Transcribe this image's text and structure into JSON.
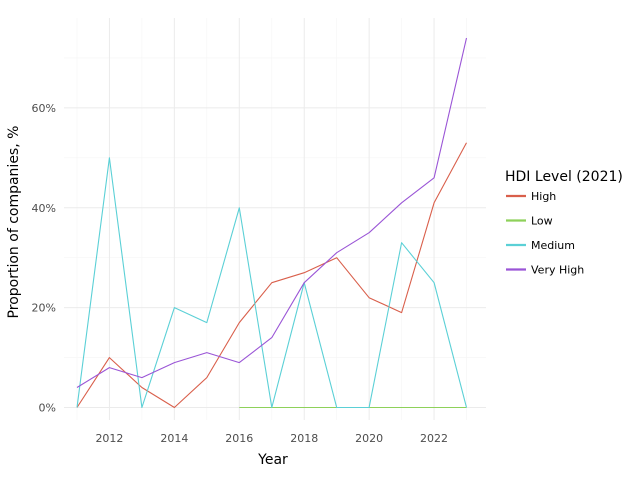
{
  "chart_data": {
    "type": "line",
    "xlabel": "Year",
    "ylabel": "Proportion of companies, %",
    "xlim": [
      2010.6,
      2023.6
    ],
    "ylim": [
      -2.5,
      78
    ],
    "x_ticks": [
      2012,
      2014,
      2016,
      2018,
      2020,
      2022
    ],
    "x_tick_labels": [
      "2012",
      "2014",
      "2016",
      "2018",
      "2020",
      "2022"
    ],
    "y_ticks": [
      0,
      20,
      40,
      60
    ],
    "y_tick_labels": [
      "0%",
      "20%",
      "40%",
      "60%"
    ],
    "grid": true,
    "legend": {
      "title": "HDI Level (2021)",
      "placement": "right"
    },
    "series": [
      {
        "name": "High",
        "color": "#d95f4b",
        "x": [
          2011,
          2012,
          2013,
          2014,
          2015,
          2016,
          2017,
          2018,
          2019,
          2020,
          2021,
          2022,
          2023
        ],
        "values": [
          0,
          10,
          4,
          0,
          6,
          17,
          25,
          27,
          30,
          22,
          19,
          41,
          53
        ]
      },
      {
        "name": "Low",
        "color": "#8ed15a",
        "x": [
          2016,
          2017,
          2018,
          2019,
          2020,
          2021,
          2022,
          2023
        ],
        "values": [
          0,
          0,
          0,
          0,
          0,
          0,
          0,
          0
        ]
      },
      {
        "name": "Medium",
        "color": "#5bd0d6",
        "x": [
          2011,
          2012,
          2013,
          2014,
          2015,
          2016,
          2017,
          2018,
          2019,
          2020,
          2021,
          2022,
          2023
        ],
        "values": [
          0,
          50,
          0,
          20,
          17,
          40,
          0,
          25,
          0,
          0,
          33,
          25,
          0
        ]
      },
      {
        "name": "Very High",
        "color": "#9a55d6",
        "x": [
          2011,
          2012,
          2013,
          2014,
          2015,
          2016,
          2017,
          2018,
          2019,
          2020,
          2021,
          2022,
          2023
        ],
        "values": [
          4,
          8,
          6,
          9,
          11,
          9,
          14,
          25,
          31,
          35,
          41,
          46,
          74
        ]
      }
    ]
  }
}
